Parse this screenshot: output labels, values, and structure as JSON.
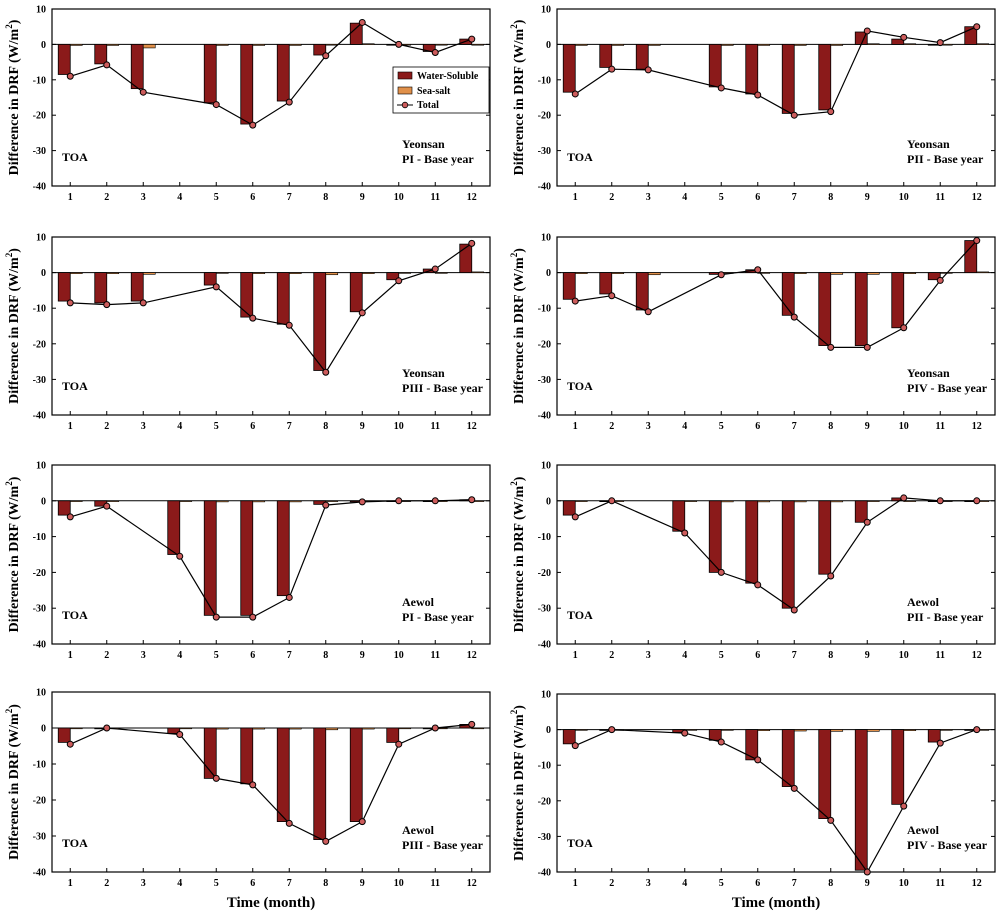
{
  "colors": {
    "water_soluble": "#8b1a1a",
    "sea_salt": "#e0904a",
    "total_marker": "#cd5c5c",
    "line": "#000000"
  },
  "chart_data": [
    {
      "type": "bar",
      "site": "Yeonsan",
      "period": "PI - Base year",
      "level": "TOA",
      "ylabel": "Difference in DRF (W/m2)",
      "xlabel": "",
      "ylim": [
        -40,
        10
      ],
      "yticks": [
        10,
        0,
        -10,
        -20,
        -30,
        -40
      ],
      "categories": [
        "1",
        "2",
        "3",
        "4",
        "5",
        "6",
        "7",
        "8",
        "9",
        "10",
        "11",
        "12"
      ],
      "legend": [
        "Water-Soluble",
        "Sea-salt",
        "Total"
      ],
      "series": [
        {
          "name": "Water-Soluble",
          "values": [
            -8.5,
            -5.5,
            -12.5,
            null,
            -16.5,
            -22.5,
            -16,
            -3,
            6,
            0,
            -2,
            1.5
          ]
        },
        {
          "name": "Sea-salt",
          "values": [
            -0.3,
            -0.3,
            -1,
            null,
            -0.3,
            -0.3,
            -0.3,
            -0.2,
            0.2,
            0,
            -0.2,
            0
          ]
        },
        {
          "name": "Total",
          "values": [
            -9,
            -5.8,
            -13.5,
            null,
            -17,
            -22.8,
            -16.3,
            -3.2,
            6.2,
            0,
            -2.3,
            1.5
          ]
        }
      ]
    },
    {
      "type": "bar",
      "site": "Yeonsan",
      "period": "PII - Base year",
      "level": "TOA",
      "ylabel": "Difference in DRF (W/m2)",
      "xlabel": "",
      "ylim": [
        -40,
        10
      ],
      "yticks": [
        10,
        0,
        -10,
        -20,
        -30,
        -40
      ],
      "categories": [
        "1",
        "2",
        "3",
        "4",
        "5",
        "6",
        "7",
        "8",
        "9",
        "10",
        "11",
        "12"
      ],
      "legend": [],
      "series": [
        {
          "name": "Water-Soluble",
          "values": [
            -13.5,
            -6.5,
            -7,
            null,
            -12,
            -14,
            -19.5,
            -18.5,
            3.5,
            1.5,
            0,
            5
          ]
        },
        {
          "name": "Sea-salt",
          "values": [
            -0.3,
            -0.3,
            -0.3,
            null,
            -0.3,
            -0.3,
            -0.3,
            -0.3,
            0.2,
            0.2,
            0,
            0.2
          ]
        },
        {
          "name": "Total",
          "values": [
            -14,
            -7,
            -7.2,
            null,
            -12.3,
            -14.3,
            -20,
            -19,
            3.8,
            2,
            0.5,
            5
          ]
        }
      ]
    },
    {
      "type": "bar",
      "site": "Yeonsan",
      "period": "PIII - Base year",
      "level": "TOA",
      "ylabel": "Difference in DRF (W/m2)",
      "xlabel": "",
      "ylim": [
        -40,
        10
      ],
      "yticks": [
        10,
        0,
        -10,
        -20,
        -30,
        -40
      ],
      "categories": [
        "1",
        "2",
        "3",
        "4",
        "5",
        "6",
        "7",
        "8",
        "9",
        "10",
        "11",
        "12"
      ],
      "legend": [],
      "series": [
        {
          "name": "Water-Soluble",
          "values": [
            -8,
            -8.5,
            -8,
            null,
            -3.5,
            -12.5,
            -14.5,
            -27.5,
            -11,
            -2,
            1,
            8
          ]
        },
        {
          "name": "Sea-salt",
          "values": [
            -0.3,
            -0.3,
            -0.5,
            null,
            -0.2,
            -0.3,
            -0.3,
            -0.6,
            -0.3,
            -0.1,
            0,
            0.2
          ]
        },
        {
          "name": "Total",
          "values": [
            -8.5,
            -9,
            -8.5,
            null,
            -4,
            -12.8,
            -14.8,
            -28,
            -11.3,
            -2.3,
            1,
            8.2
          ]
        }
      ]
    },
    {
      "type": "bar",
      "site": "Yeonsan",
      "period": "PIV - Base year",
      "level": "TOA",
      "ylabel": "Difference in DRF (W/m2)",
      "xlabel": "",
      "ylim": [
        -40,
        10
      ],
      "yticks": [
        10,
        0,
        -10,
        -20,
        -30,
        -40
      ],
      "categories": [
        "1",
        "2",
        "3",
        "4",
        "5",
        "6",
        "7",
        "8",
        "9",
        "10",
        "11",
        "12"
      ],
      "legend": [],
      "series": [
        {
          "name": "Water-Soluble",
          "values": [
            -7.5,
            -6,
            -10.5,
            null,
            -0.5,
            0.8,
            -12,
            -20.5,
            -20.5,
            -15.5,
            -2,
            9
          ]
        },
        {
          "name": "Sea-salt",
          "values": [
            -0.3,
            -0.3,
            -0.6,
            null,
            -0.1,
            0,
            -0.3,
            -0.5,
            -0.5,
            -0.3,
            -0.1,
            0.2
          ]
        },
        {
          "name": "Total",
          "values": [
            -8,
            -6.5,
            -11,
            null,
            -0.6,
            0.8,
            -12.5,
            -21,
            -21,
            -15.5,
            -2.2,
            9
          ]
        }
      ]
    },
    {
      "type": "bar",
      "site": "Aewol",
      "period": "PI - Base year",
      "level": "TOA",
      "ylabel": "Difference in DRF (W/m2)",
      "xlabel": "",
      "ylim": [
        -40,
        10
      ],
      "yticks": [
        10,
        0,
        -10,
        -20,
        -30,
        -40
      ],
      "categories": [
        "1",
        "2",
        "3",
        "4",
        "5",
        "6",
        "7",
        "8",
        "9",
        "10",
        "11",
        "12"
      ],
      "legend": [],
      "series": [
        {
          "name": "Water-Soluble",
          "values": [
            -4,
            -1.5,
            null,
            -15,
            -32,
            -32,
            -26.5,
            -1,
            -0.3,
            0,
            0,
            0.3
          ]
        },
        {
          "name": "Sea-salt",
          "values": [
            -0.2,
            -0.1,
            null,
            -0.2,
            -0.3,
            -0.3,
            -0.3,
            -0.2,
            0,
            0,
            0,
            0
          ]
        },
        {
          "name": "Total",
          "values": [
            -4.5,
            -1.5,
            null,
            -15.5,
            -32.5,
            -32.5,
            -27,
            -1.2,
            -0.3,
            0,
            0,
            0.3
          ]
        }
      ]
    },
    {
      "type": "bar",
      "site": "Aewol",
      "period": "PII - Base year",
      "level": "TOA",
      "ylabel": "Difference in DRF (W/m2)",
      "xlabel": "",
      "ylim": [
        -40,
        10
      ],
      "yticks": [
        10,
        0,
        -10,
        -20,
        -30,
        -40
      ],
      "categories": [
        "1",
        "2",
        "3",
        "4",
        "5",
        "6",
        "7",
        "8",
        "9",
        "10",
        "11",
        "12"
      ],
      "legend": [],
      "series": [
        {
          "name": "Water-Soluble",
          "values": [
            -4,
            0,
            null,
            -8.5,
            -20,
            -23,
            -30,
            -20.5,
            -6,
            0.8,
            0,
            0
          ]
        },
        {
          "name": "Sea-salt",
          "values": [
            -0.2,
            0,
            null,
            -0.2,
            -0.3,
            -0.3,
            -0.3,
            -0.3,
            -0.2,
            0,
            0,
            0
          ]
        },
        {
          "name": "Total",
          "values": [
            -4.5,
            0,
            null,
            -9,
            -20,
            -23.5,
            -30.5,
            -21,
            -6,
            0.8,
            0,
            0
          ]
        }
      ]
    },
    {
      "type": "bar",
      "site": "Aewol",
      "period": "PIII - Base year",
      "level": "TOA",
      "ylabel": "Difference in DRF (W/m2)",
      "xlabel": "Time (month)",
      "ylim": [
        -40,
        10
      ],
      "yticks": [
        10,
        0,
        -10,
        -20,
        -30,
        -40
      ],
      "categories": [
        "1",
        "2",
        "3",
        "4",
        "5",
        "6",
        "7",
        "8",
        "9",
        "10",
        "11",
        "12"
      ],
      "legend": [],
      "series": [
        {
          "name": "Water-Soluble",
          "values": [
            -4,
            0,
            null,
            -1.5,
            -14,
            -15.5,
            -26,
            -31,
            -26,
            -4,
            0,
            1
          ]
        },
        {
          "name": "Sea-salt",
          "values": [
            -0.2,
            0,
            null,
            -0.1,
            -0.3,
            -0.3,
            -0.3,
            -0.5,
            -0.3,
            -0.1,
            0,
            0
          ]
        },
        {
          "name": "Total",
          "values": [
            -4.5,
            0,
            null,
            -1.8,
            -14,
            -15.8,
            -26.5,
            -31.5,
            -26,
            -4.5,
            0,
            1
          ]
        }
      ]
    },
    {
      "type": "bar",
      "site": "Aewol",
      "period": "PIV - Base year",
      "level": "TOA",
      "ylabel": "Difference in DRF (W/m2)",
      "xlabel": "Time (month)",
      "ylim": [
        -40,
        10
      ],
      "yticks": [
        10,
        0,
        -10,
        -20,
        -30,
        -40
      ],
      "categories": [
        "1",
        "2",
        "3",
        "4",
        "5",
        "6",
        "7",
        "8",
        "9",
        "10",
        "11",
        "12"
      ],
      "legend": [],
      "series": [
        {
          "name": "Water-Soluble",
          "values": [
            -4,
            0,
            null,
            -0.8,
            -3,
            -8.5,
            -16,
            -25,
            -39.5,
            -21,
            -3.5,
            0
          ]
        },
        {
          "name": "Sea-salt",
          "values": [
            -0.2,
            0,
            null,
            -0.1,
            -0.2,
            -0.3,
            -0.4,
            -0.5,
            -0.5,
            -0.3,
            -0.1,
            0
          ]
        },
        {
          "name": "Total",
          "values": [
            -4.5,
            0,
            null,
            -1,
            -3.5,
            -8.5,
            -16.5,
            -25.5,
            -40,
            -21.5,
            -3.8,
            0
          ]
        }
      ]
    }
  ]
}
